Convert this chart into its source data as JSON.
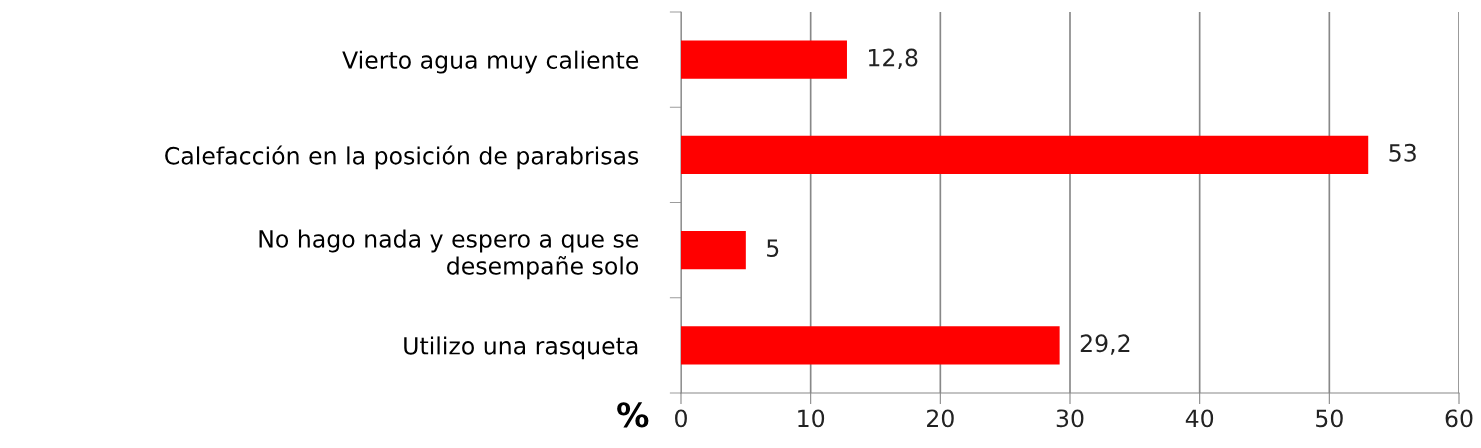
{
  "chart_data": {
    "type": "bar",
    "orientation": "horizontal",
    "xlabel": "%",
    "categories": [
      "Vierto agua muy caliente",
      "Calefacción en la posición de parabrisas",
      "No hago nada y espero a que se\ndesempañe solo",
      "Utilizo una rasqueta"
    ],
    "values": [
      12.8,
      53,
      5,
      29.2
    ],
    "value_labels": [
      "12,8",
      "53",
      "5",
      "29,2"
    ],
    "color": "#ff0000",
    "xlim": [
      0,
      60
    ],
    "xticks": [
      0,
      10,
      20,
      30,
      40,
      50,
      60
    ],
    "grid": "x",
    "legend": false
  }
}
